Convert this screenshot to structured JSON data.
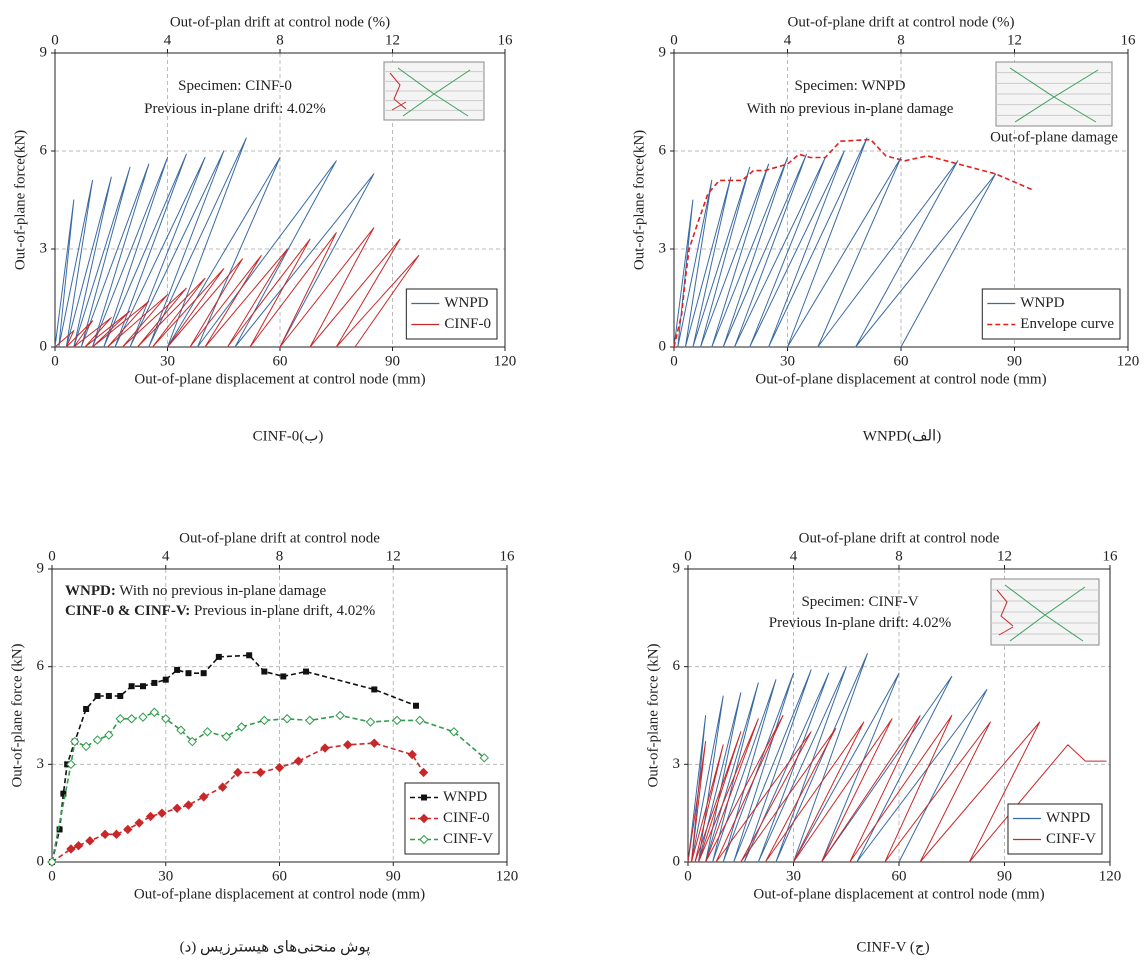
{
  "chart_data": [
    {
      "type": "line",
      "caption": "CINF-0(ب)",
      "x_label": "Out-of-plane displacement at control node (mm)",
      "x2_label": "Out-of-plan drift at control node (%)",
      "y_label": "Out-of-plane force(kN)",
      "xlim": [
        0,
        120
      ],
      "xticks": [
        0,
        30,
        60,
        90,
        120
      ],
      "x2lim": [
        0,
        16
      ],
      "x2ticks": [
        0,
        4,
        8,
        12,
        16
      ],
      "ylim": [
        0,
        9
      ],
      "yticks": [
        0,
        3,
        6,
        9
      ],
      "grid": true,
      "legend": "lower right",
      "inset": true,
      "annotations": [
        [
          {
            "text": "Specimen: CINF-0"
          }
        ],
        [
          {
            "text": "Previous in-plane drift: 4.02%"
          }
        ]
      ],
      "series": [
        {
          "name": "WNPD",
          "color": "#3a6aa3",
          "x": [
            0,
            5,
            1,
            10,
            3,
            15,
            5,
            20,
            7,
            25,
            10,
            30,
            13,
            35,
            16,
            40,
            20,
            45,
            25,
            51,
            30,
            60,
            38,
            75,
            48,
            85,
            60
          ],
          "y": [
            0,
            4.5,
            0,
            5.1,
            0,
            5.2,
            0,
            5.5,
            0,
            5.6,
            0,
            5.8,
            0,
            5.9,
            0,
            5.8,
            0,
            6.0,
            0,
            6.4,
            0,
            5.8,
            0,
            5.7,
            0,
            5.3,
            0
          ]
        },
        {
          "name": "CINF-0",
          "color": "#c8282a",
          "x": [
            0,
            5,
            3,
            10,
            5,
            15,
            8,
            20,
            10,
            25,
            14,
            30,
            18,
            35,
            22,
            40,
            26,
            45,
            30,
            50,
            36,
            55,
            40,
            62,
            46,
            68,
            52,
            75,
            60,
            85,
            68,
            92,
            75,
            97,
            80
          ],
          "y": [
            0,
            0.5,
            0,
            0.8,
            0,
            0.9,
            0,
            1.1,
            0,
            1.4,
            0,
            1.6,
            0,
            1.8,
            0,
            2.1,
            0,
            2.4,
            0,
            2.7,
            0,
            2.8,
            0,
            3.0,
            0,
            3.3,
            0,
            3.5,
            0,
            3.65,
            0,
            3.3,
            0,
            2.8,
            0
          ]
        }
      ]
    },
    {
      "type": "line",
      "caption": "WNPD(الف)",
      "x_label": "Out-of-plane displacement at control node (mm)",
      "x2_label": "Out-of-plane drift at control node (%)",
      "y_label": "Out-of-plane force(kN)",
      "xlim": [
        0,
        120
      ],
      "xticks": [
        0,
        30,
        60,
        90,
        120
      ],
      "x2lim": [
        0,
        16
      ],
      "x2ticks": [
        0,
        4,
        8,
        12,
        16
      ],
      "ylim": [
        0,
        9
      ],
      "yticks": [
        0,
        3,
        6,
        9
      ],
      "grid": true,
      "legend": "lower right",
      "inset": true,
      "inset_label": "Out-of-plane damage",
      "annotations": [
        [
          {
            "text": "Specimen: WNPD"
          }
        ],
        [
          {
            "text": "With no previous in-plane damage"
          }
        ]
      ],
      "series": [
        {
          "name": "WNPD",
          "color": "#3a6aa3",
          "x": [
            0,
            5,
            1,
            10,
            3,
            15,
            5,
            20,
            7,
            25,
            10,
            30,
            13,
            35,
            16,
            40,
            20,
            45,
            25,
            51,
            30,
            60,
            38,
            75,
            48,
            85,
            60
          ],
          "y": [
            0,
            4.5,
            0,
            5.1,
            0,
            5.2,
            0,
            5.5,
            0,
            5.6,
            0,
            5.8,
            0,
            5.9,
            0,
            5.8,
            0,
            6.0,
            0,
            6.4,
            0,
            5.8,
            0,
            5.7,
            0,
            5.3,
            0
          ]
        },
        {
          "name": "Envelope curve",
          "color": "#e0201c",
          "dash": true,
          "x": [
            0,
            2,
            3,
            4,
            6,
            9,
            12,
            15,
            18,
            21,
            24,
            27,
            30,
            33,
            36,
            40,
            44,
            52,
            56,
            61,
            67,
            85,
            95
          ],
          "y": [
            0,
            1,
            2.1,
            3,
            3.7,
            4.7,
            5.1,
            5.1,
            5.1,
            5.4,
            5.4,
            5.5,
            5.6,
            5.9,
            5.8,
            5.8,
            6.3,
            6.35,
            5.85,
            5.7,
            5.85,
            5.3,
            4.8
          ]
        }
      ]
    },
    {
      "type": "line",
      "caption": "(د) پوش منحنی‌های هیسترزیس",
      "x_label": "Out-of-plane displacement at control node (mm)",
      "x2_label": "Out-of-plane drift at control node",
      "y_label": "Out-of-plane force (kN)",
      "xlim": [
        0,
        120
      ],
      "xticks": [
        0,
        30,
        60,
        90,
        120
      ],
      "x2lim": [
        0,
        16
      ],
      "x2ticks": [
        0,
        4,
        8,
        12,
        16
      ],
      "ylim": [
        0,
        9
      ],
      "yticks": [
        0,
        3,
        6,
        9
      ],
      "grid": true,
      "legend": "lower right",
      "annotations": [
        [
          {
            "text": "WNPD:",
            "bold": true
          },
          {
            "text": " With no previous in-plane damage"
          }
        ],
        [
          {
            "text": "CINF-0 & CINF-V:",
            "bold": true
          },
          {
            "text": " Previous in-plane drift, 4.02%"
          }
        ]
      ],
      "series": [
        {
          "name": "WNPD",
          "color": "#111111",
          "dash": true,
          "marker": "square",
          "x": [
            0,
            2,
            3,
            4,
            6,
            9,
            12,
            15,
            18,
            21,
            24,
            27,
            30,
            33,
            36,
            40,
            44,
            52,
            56,
            61,
            67,
            85,
            96
          ],
          "y": [
            0,
            1,
            2.1,
            3,
            3.7,
            4.7,
            5.1,
            5.1,
            5.1,
            5.4,
            5.4,
            5.5,
            5.6,
            5.9,
            5.8,
            5.8,
            6.3,
            6.35,
            5.85,
            5.7,
            5.85,
            5.3,
            4.8
          ]
        },
        {
          "name": "CINF-0",
          "color": "#c8282a",
          "dash": true,
          "marker": "diamond",
          "x": [
            0,
            5,
            7,
            10,
            14,
            17,
            20,
            23,
            26,
            29,
            33,
            36,
            40,
            45,
            49,
            55,
            60,
            65,
            72,
            78,
            85,
            95,
            98
          ],
          "y": [
            0,
            0.4,
            0.5,
            0.65,
            0.85,
            0.85,
            1.0,
            1.2,
            1.4,
            1.5,
            1.65,
            1.75,
            2.0,
            2.3,
            2.75,
            2.75,
            2.9,
            3.1,
            3.5,
            3.6,
            3.65,
            3.3,
            2.75
          ]
        },
        {
          "name": "CINF-V",
          "color": "#2e9e4a",
          "dash": true,
          "marker": "open-diamond",
          "x": [
            0,
            5,
            6,
            9,
            12,
            15,
            18,
            21,
            24,
            27,
            30,
            34,
            37,
            41,
            46,
            50,
            56,
            62,
            68,
            76,
            84,
            91,
            97,
            106,
            114
          ],
          "y": [
            0,
            3,
            3.7,
            3.55,
            3.75,
            3.9,
            4.4,
            4.4,
            4.45,
            4.6,
            4.4,
            4.05,
            3.7,
            4.0,
            3.85,
            4.15,
            4.35,
            4.4,
            4.35,
            4.5,
            4.3,
            4.35,
            4.35,
            4.0,
            3.2
          ]
        }
      ]
    },
    {
      "type": "line",
      "caption": "CINF-V (ج)",
      "x_label": "Out-of-plane displacement at control node (mm)",
      "x2_label": "Out-of-plane drift at control node",
      "y_label": "Out-of-plane force (kN)",
      "xlim": [
        0,
        120
      ],
      "xticks": [
        0,
        30,
        60,
        90,
        120
      ],
      "x2lim": [
        0,
        16
      ],
      "x2ticks": [
        0,
        4,
        8,
        12,
        16
      ],
      "ylim": [
        0,
        9
      ],
      "yticks": [
        0,
        3,
        6,
        9
      ],
      "grid": true,
      "legend": "lower right",
      "inset": true,
      "annotations": [
        [
          {
            "text": "Specimen: CINF-V"
          }
        ],
        [
          {
            "text": "Previous In-plane drift: 4.02%"
          }
        ]
      ],
      "series": [
        {
          "name": "WNPD",
          "color": "#3a6aa3",
          "x": [
            0,
            5,
            1,
            10,
            3,
            15,
            5,
            20,
            7,
            25,
            10,
            30,
            13,
            35,
            16,
            40,
            20,
            45,
            25,
            51,
            30,
            60,
            38,
            75,
            48,
            85,
            60
          ],
          "y": [
            0,
            4.5,
            0,
            5.1,
            0,
            5.2,
            0,
            5.5,
            0,
            5.6,
            0,
            5.8,
            0,
            5.9,
            0,
            5.8,
            0,
            6.0,
            0,
            6.4,
            0,
            5.8,
            0,
            5.7,
            0,
            5.3,
            0
          ]
        },
        {
          "name": "CINF-V",
          "color": "#c8282a",
          "x": [
            0,
            5,
            1,
            10,
            2,
            15,
            3,
            20,
            5,
            27,
            8,
            35,
            15,
            42,
            22,
            50,
            30,
            58,
            38,
            66,
            46,
            75,
            56,
            86,
            66,
            100,
            80,
            108,
            113,
            119
          ],
          "y": [
            0,
            3.7,
            0,
            3.6,
            0,
            4.0,
            0,
            4.4,
            0,
            4.5,
            0,
            4.0,
            0,
            4.1,
            0,
            4.3,
            0,
            4.4,
            0,
            4.5,
            0,
            4.5,
            0,
            4.3,
            0,
            4.3,
            0,
            3.6,
            3.1,
            3.1
          ]
        }
      ]
    }
  ]
}
